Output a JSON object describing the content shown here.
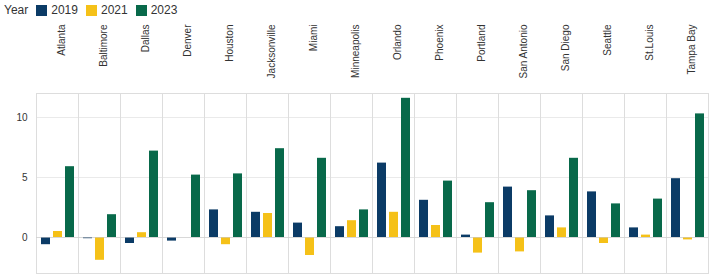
{
  "chart_data": {
    "type": "bar",
    "legend_title": "Year",
    "legend": "top-left",
    "grid": true,
    "categories": [
      "Atlanta",
      "Baltimore",
      "Dallas",
      "Denver",
      "Houston",
      "Jacksonville",
      "Miami",
      "Minneapolis",
      "Orlando",
      "Phoenix",
      "Portland",
      "San Antonio",
      "San Diego",
      "Seattle",
      "St.Louis",
      "Tampa Bay"
    ],
    "series": [
      {
        "name": "2019",
        "color": "#0b3b66",
        "values": [
          -0.6,
          -0.1,
          -0.5,
          -0.3,
          2.3,
          2.1,
          1.2,
          0.9,
          6.2,
          3.1,
          0.2,
          4.2,
          1.8,
          3.8,
          0.8,
          4.9
        ]
      },
      {
        "name": "2021",
        "color": "#f5c118",
        "values": [
          0.5,
          -1.9,
          0.4,
          0,
          -0.6,
          2.0,
          -1.5,
          1.4,
          2.1,
          1.0,
          -1.3,
          -1.2,
          0.8,
          -0.5,
          0.2,
          -0.2
        ]
      },
      {
        "name": "2023",
        "color": "#08694a",
        "values": [
          5.9,
          1.9,
          7.2,
          5.2,
          5.3,
          7.4,
          6.6,
          2.3,
          11.6,
          4.7,
          2.9,
          3.9,
          6.6,
          2.8,
          3.2,
          10.3
        ]
      }
    ],
    "ylim": [
      -3,
      12
    ],
    "yticks": [
      0,
      5,
      10
    ]
  }
}
